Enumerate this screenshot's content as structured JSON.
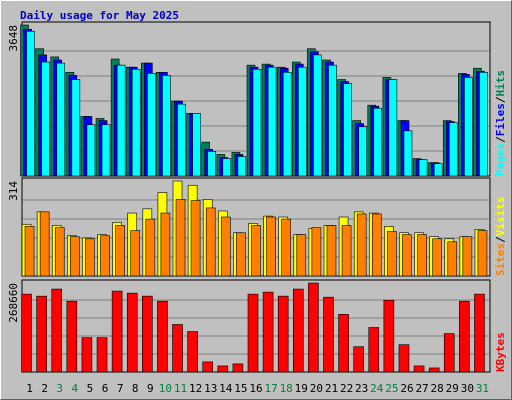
{
  "chart_data": [
    {
      "type": "bar",
      "title": "Daily usage for May 2025",
      "ylim": [
        0,
        3648
      ],
      "yticks": [
        3648
      ],
      "legend_separator": "/",
      "series": [
        {
          "name": "Hits",
          "color": "#00805c",
          "values": [
            3648,
            3075,
            2877,
            2505,
            1438,
            1389,
            2827,
            2629,
            2728,
            2505,
            1810,
            1513,
            818,
            521,
            570,
            2678,
            2703,
            2629,
            2753,
            3075,
            2802,
            2331,
            1339,
            1711,
            2381,
            1339,
            422,
            322,
            1339,
            2480,
            2604
          ]
        },
        {
          "name": "Files",
          "color": "#0000ff",
          "values": [
            3546,
            2926,
            2802,
            2430,
            1438,
            1339,
            2678,
            2629,
            2728,
            2505,
            1810,
            1513,
            645,
            446,
            521,
            2629,
            2678,
            2604,
            2703,
            3001,
            2753,
            2282,
            1265,
            1686,
            2331,
            1339,
            397,
            322,
            1314,
            2455,
            2530
          ]
        },
        {
          "name": "Pages",
          "color": "#00ffff",
          "values": [
            3497,
            2753,
            2728,
            2331,
            1240,
            1240,
            2678,
            2579,
            2480,
            2430,
            1736,
            1513,
            595,
            422,
            471,
            2579,
            2629,
            2505,
            2629,
            2926,
            2678,
            2232,
            1190,
            1637,
            2331,
            1091,
            397,
            298,
            1290,
            2381,
            2505
          ]
        }
      ]
    },
    {
      "type": "bar",
      "ylim": [
        0,
        314
      ],
      "yticks": [
        314
      ],
      "legend_separator": "/",
      "series": [
        {
          "name": "Visits",
          "color": "#ffff00",
          "values": [
            171,
            212,
            167,
            133,
            126,
            137,
            177,
            208,
            222,
            276,
            314,
            300,
            253,
            215,
            143,
            174,
            198,
            195,
            137,
            157,
            167,
            195,
            212,
            208,
            164,
            143,
            143,
            130,
            123,
            130,
            154
          ]
        },
        {
          "name": "Sites",
          "color": "#ff8000",
          "values": [
            164,
            212,
            160,
            130,
            123,
            133,
            167,
            150,
            188,
            208,
            253,
            249,
            225,
            195,
            143,
            167,
            195,
            188,
            137,
            160,
            167,
            167,
            205,
            205,
            147,
            137,
            137,
            123,
            113,
            130,
            150
          ]
        }
      ]
    },
    {
      "type": "bar",
      "ylim": [
        0,
        268660
      ],
      "yticks": [
        268660
      ],
      "categories": [
        "1",
        "2",
        "3",
        "4",
        "5",
        "6",
        "7",
        "8",
        "9",
        "10",
        "11",
        "12",
        "13",
        "14",
        "15",
        "16",
        "17",
        "18",
        "19",
        "20",
        "21",
        "22",
        "23",
        "24",
        "25",
        "26",
        "27",
        "28",
        "29",
        "30",
        "31"
      ],
      "category_colors": [
        "#000000",
        "#000000",
        "#008040",
        "#008040",
        "#000000",
        "#000000",
        "#000000",
        "#000000",
        "#000000",
        "#008040",
        "#008040",
        "#000000",
        "#000000",
        "#000000",
        "#000000",
        "#000000",
        "#008040",
        "#008040",
        "#000000",
        "#000000",
        "#000000",
        "#000000",
        "#000000",
        "#008040",
        "#008040",
        "#000000",
        "#000000",
        "#000000",
        "#000000",
        "#000000",
        "#008040"
      ],
      "series": [
        {
          "name": "KBytes",
          "color": "#ff0000",
          "values": [
            235081,
            228975,
            250346,
            213710,
            103802,
            103802,
            244240,
            238134,
            228975,
            213710,
            143491,
            122120,
            30530,
            18318,
            24424,
            235081,
            241187,
            228975,
            250346,
            268660,
            225922,
            174021,
            76325,
            134332,
            216763,
            82431,
            18318,
            12212,
            116014,
            213710,
            235081
          ]
        }
      ]
    }
  ]
}
